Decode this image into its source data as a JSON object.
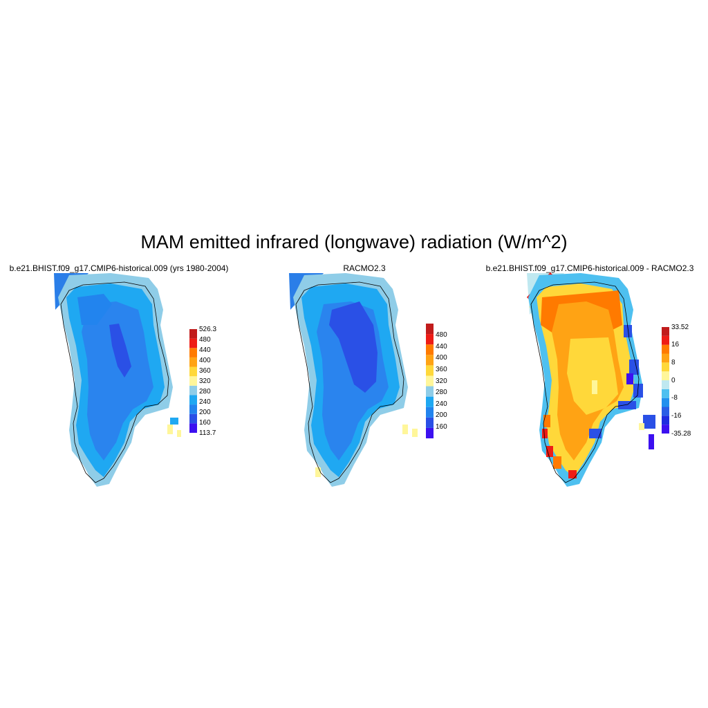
{
  "title": "MAM emitted infrared (longwave) radiation (W/m^2)",
  "panels": [
    {
      "title": "b.e21.BHIST.f09_g17.CMIP6-historical.009 (yrs 1980-2004)",
      "colorbar": {
        "colors": [
          "#3c10f0",
          "#2a50e6",
          "#2284ee",
          "#1fa8f2",
          "#8fcde8",
          "#fff69a",
          "#ffd83a",
          "#ffa314",
          "#ff7a00",
          "#ee1c16",
          "#c11c1c"
        ],
        "labels": [
          "113.7",
          "160",
          "200",
          "240",
          "280",
          "320",
          "360",
          "400",
          "440",
          "480",
          "526.3"
        ]
      }
    },
    {
      "title": "RACMO2.3",
      "colorbar": {
        "colors": [
          "#3c10f0",
          "#2a50e6",
          "#2284ee",
          "#1fa8f2",
          "#8fcde8",
          "#fff69a",
          "#ffd83a",
          "#ffa314",
          "#ff7a00",
          "#ee1c16",
          "#c11c1c"
        ],
        "labels": [
          "",
          "160",
          "200",
          "240",
          "280",
          "320",
          "360",
          "400",
          "440",
          "480",
          ""
        ]
      }
    },
    {
      "title": "b.e21.BHIST.f09_g17.CMIP6-historical.009 - RACMO2.3",
      "colorbar": {
        "colors": [
          "#3c10f0",
          "#1f2ce0",
          "#2a5ee6",
          "#2290ee",
          "#4ec0f0",
          "#bfe8f0",
          "#fff69a",
          "#ffd83a",
          "#ffa314",
          "#ff7a00",
          "#ee1c16",
          "#c11c1c"
        ],
        "labels": [
          "-35.28",
          "",
          "-16",
          "",
          "-8",
          "",
          "0",
          "",
          "8",
          "",
          "16",
          "",
          "33.52"
        ]
      }
    }
  ]
}
